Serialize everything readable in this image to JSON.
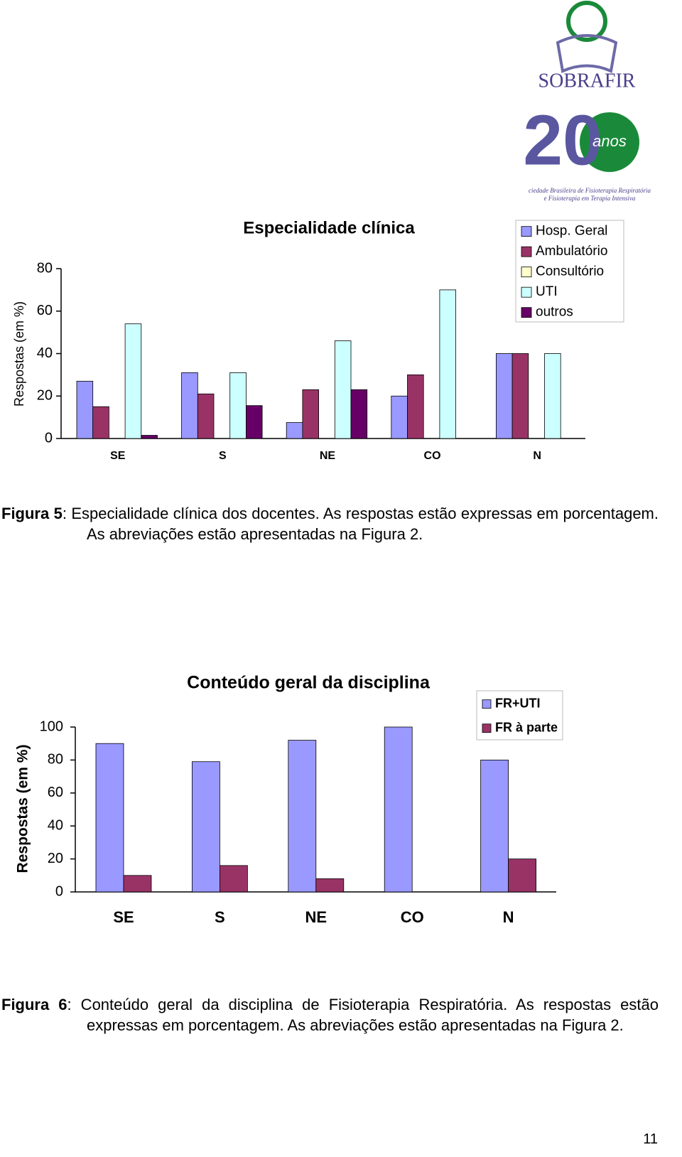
{
  "logo": {
    "name": "SOBRAFIR",
    "number": "20",
    "anos": "anos",
    "tagline": [
      "ciedade Brasileira de Fisioterapia Respiratória",
      "e Fisioterapia em Terapia Intensiva"
    ]
  },
  "chart_data": [
    {
      "type": "bar",
      "title": "Especialidade clínica",
      "y_label": "Respostas (em %)",
      "categories": [
        "SE",
        "S",
        "NE",
        "CO",
        "N"
      ],
      "series": [
        {
          "name": "Hosp. Geral",
          "color": "#9999ff",
          "values": [
            27,
            31,
            7.5,
            20,
            40
          ]
        },
        {
          "name": "Ambulatório",
          "color": "#993366",
          "values": [
            15,
            21,
            23,
            30,
            40
          ]
        },
        {
          "name": "Consultório",
          "color": "#ffffcc",
          "values": [
            0,
            0,
            0,
            0,
            0
          ]
        },
        {
          "name": "UTI",
          "color": "#ccffff",
          "values": [
            54,
            31,
            46,
            70,
            40
          ]
        },
        {
          "name": "outros",
          "color": "#660066",
          "values": [
            1.5,
            15.5,
            23,
            0,
            0
          ]
        }
      ],
      "ylim": [
        0,
        80
      ],
      "yticks": [
        0,
        20,
        40,
        60,
        80
      ],
      "grid": false,
      "legend": "top-right"
    },
    {
      "type": "bar",
      "title": "Conteúdo geral da disciplina",
      "y_label": "Respostas (em %)",
      "categories": [
        "SE",
        "S",
        "NE",
        "CO",
        "N"
      ],
      "series": [
        {
          "name": "FR+UTI",
          "color": "#9999ff",
          "values": [
            90,
            79,
            92,
            100,
            80
          ]
        },
        {
          "name": "FR à parte",
          "color": "#993366",
          "values": [
            10,
            16,
            8,
            0,
            20
          ]
        }
      ],
      "ylim": [
        0,
        100
      ],
      "yticks": [
        0,
        20,
        40,
        60,
        80,
        100
      ],
      "grid": false,
      "legend": "top-right"
    }
  ],
  "captions": [
    {
      "label": "Figura 5",
      "text": ": Especialidade clínica dos docentes. As respostas estão expressas em porcentagem. As abreviações estão apresentadas na Figura 2."
    },
    {
      "label": "Figura 6",
      "text": ": Conteúdo geral da disciplina de Fisioterapia Respiratória. As respostas estão expressas em porcentagem. As abreviações estão apresentadas na Figura 2."
    }
  ],
  "page_number": "11"
}
